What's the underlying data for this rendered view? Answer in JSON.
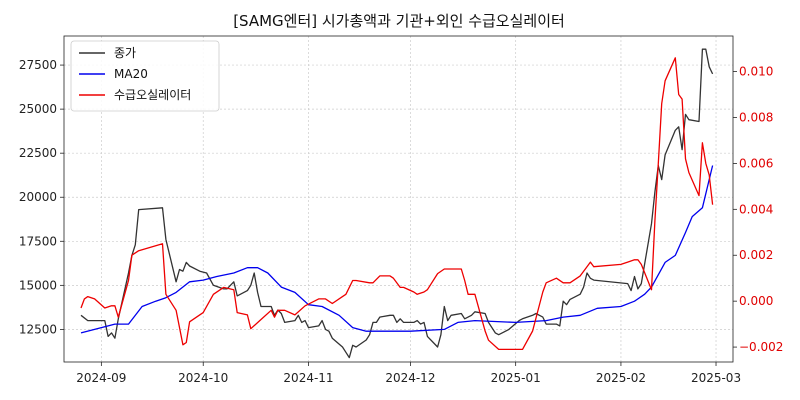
{
  "chart_data": {
    "type": "line",
    "title": "[SAMG엔터] 시가총액과 기관+외인 수급오실레이터",
    "x_ticks": [
      "2024-09",
      "2024-10",
      "2024-11",
      "2024-12",
      "2025-01",
      "2025-02",
      "2025-03"
    ],
    "x_range": [
      "2024-08-21",
      "2025-03-06"
    ],
    "y_left_ticks": [
      12500,
      15000,
      17500,
      20000,
      22500,
      25000,
      27500
    ],
    "y_left_range": [
      10650,
      29150
    ],
    "y_right_ticks": [
      -0.002,
      0.0,
      0.002,
      0.004,
      0.006,
      0.008,
      0.01
    ],
    "y_right_range": [
      -0.00265,
      0.01155
    ],
    "grid": true,
    "legend_position": "top-left",
    "series": [
      {
        "name": "종가",
        "axis": "left",
        "color": "#333333",
        "points": [
          [
            "2024-08-26",
            13300
          ],
          [
            "2024-08-28",
            13000
          ],
          [
            "2024-08-30",
            13000
          ],
          [
            "2024-09-02",
            13000
          ],
          [
            "2024-09-03",
            12100
          ],
          [
            "2024-09-04",
            12300
          ],
          [
            "2024-09-05",
            12000
          ],
          [
            "2024-09-06",
            13100
          ],
          [
            "2024-09-09",
            15700
          ],
          [
            "2024-09-10",
            16700
          ],
          [
            "2024-09-11",
            17300
          ],
          [
            "2024-09-12",
            19300
          ],
          [
            "2024-09-19",
            19400
          ],
          [
            "2024-09-20",
            17600
          ],
          [
            "2024-09-23",
            15200
          ],
          [
            "2024-09-24",
            15900
          ],
          [
            "2024-09-25",
            15800
          ],
          [
            "2024-09-26",
            16300
          ],
          [
            "2024-09-27",
            16100
          ],
          [
            "2024-09-30",
            15800
          ],
          [
            "2024-10-02",
            15700
          ],
          [
            "2024-10-04",
            15000
          ],
          [
            "2024-10-07",
            14800
          ],
          [
            "2024-10-08",
            14800
          ],
          [
            "2024-10-10",
            15200
          ],
          [
            "2024-10-11",
            14400
          ],
          [
            "2024-10-14",
            14700
          ],
          [
            "2024-10-15",
            15000
          ],
          [
            "2024-10-16",
            15700
          ],
          [
            "2024-10-17",
            14600
          ],
          [
            "2024-10-18",
            13800
          ],
          [
            "2024-10-21",
            13800
          ],
          [
            "2024-10-22",
            13300
          ],
          [
            "2024-10-23",
            13600
          ],
          [
            "2024-10-24",
            13400
          ],
          [
            "2024-10-25",
            12900
          ],
          [
            "2024-10-28",
            13000
          ],
          [
            "2024-10-29",
            13300
          ],
          [
            "2024-10-30",
            12900
          ],
          [
            "2024-10-31",
            13000
          ],
          [
            "2024-11-01",
            12600
          ],
          [
            "2024-11-04",
            12700
          ],
          [
            "2024-11-05",
            13000
          ],
          [
            "2024-11-06",
            12500
          ],
          [
            "2024-11-07",
            12400
          ],
          [
            "2024-11-08",
            12000
          ],
          [
            "2024-11-11",
            11500
          ],
          [
            "2024-11-12",
            11200
          ],
          [
            "2024-11-13",
            10900
          ],
          [
            "2024-11-14",
            11600
          ],
          [
            "2024-11-15",
            11500
          ],
          [
            "2024-11-18",
            11900
          ],
          [
            "2024-11-19",
            12200
          ],
          [
            "2024-11-20",
            12900
          ],
          [
            "2024-11-21",
            12900
          ],
          [
            "2024-11-22",
            13200
          ],
          [
            "2024-11-25",
            13300
          ],
          [
            "2024-11-26",
            13300
          ],
          [
            "2024-11-27",
            12900
          ],
          [
            "2024-11-28",
            13100
          ],
          [
            "2024-11-29",
            12900
          ],
          [
            "2024-12-02",
            12900
          ],
          [
            "2024-12-03",
            13000
          ],
          [
            "2024-12-04",
            12800
          ],
          [
            "2024-12-05",
            12900
          ],
          [
            "2024-12-06",
            12100
          ],
          [
            "2024-12-09",
            11500
          ],
          [
            "2024-12-10",
            12200
          ],
          [
            "2024-12-11",
            13800
          ],
          [
            "2024-12-12",
            13000
          ],
          [
            "2024-12-13",
            13300
          ],
          [
            "2024-12-16",
            13400
          ],
          [
            "2024-12-17",
            13100
          ],
          [
            "2024-12-18",
            13200
          ],
          [
            "2024-12-19",
            13300
          ],
          [
            "2024-12-20",
            13500
          ],
          [
            "2024-12-23",
            13400
          ],
          [
            "2024-12-24",
            12900
          ],
          [
            "2024-12-26",
            12300
          ],
          [
            "2024-12-27",
            12200
          ],
          [
            "2024-12-30",
            12500
          ],
          [
            "2025-01-02",
            13000
          ],
          [
            "2025-01-03",
            13100
          ],
          [
            "2025-01-06",
            13300
          ],
          [
            "2025-01-07",
            13400
          ],
          [
            "2025-01-08",
            13300
          ],
          [
            "2025-01-09",
            13200
          ],
          [
            "2025-01-10",
            12800
          ],
          [
            "2025-01-13",
            12800
          ],
          [
            "2025-01-14",
            12700
          ],
          [
            "2025-01-15",
            14100
          ],
          [
            "2025-01-16",
            13900
          ],
          [
            "2025-01-17",
            14200
          ],
          [
            "2025-01-20",
            14500
          ],
          [
            "2025-01-21",
            14900
          ],
          [
            "2025-01-22",
            15700
          ],
          [
            "2025-01-23",
            15400
          ],
          [
            "2025-01-24",
            15300
          ],
          [
            "2025-02-03",
            15100
          ],
          [
            "2025-02-04",
            14700
          ],
          [
            "2025-02-05",
            15500
          ],
          [
            "2025-02-06",
            14800
          ],
          [
            "2025-02-07",
            15100
          ],
          [
            "2025-02-10",
            18500
          ],
          [
            "2025-02-11",
            20300
          ],
          [
            "2025-02-12",
            21800
          ],
          [
            "2025-02-13",
            21000
          ],
          [
            "2025-02-14",
            22400
          ],
          [
            "2025-02-17",
            23800
          ],
          [
            "2025-02-18",
            24000
          ],
          [
            "2025-02-19",
            22700
          ],
          [
            "2025-02-20",
            24700
          ],
          [
            "2025-02-21",
            24400
          ],
          [
            "2025-02-24",
            24300
          ],
          [
            "2025-02-25",
            28400
          ],
          [
            "2025-02-26",
            28400
          ],
          [
            "2025-02-27",
            27400
          ],
          [
            "2025-02-28",
            27000
          ]
        ]
      },
      {
        "name": "MA20",
        "axis": "left",
        "color": "#0000ee",
        "points": [
          [
            "2024-08-26",
            12300
          ],
          [
            "2024-09-01",
            12600
          ],
          [
            "2024-09-05",
            12800
          ],
          [
            "2024-09-09",
            12800
          ],
          [
            "2024-09-13",
            13800
          ],
          [
            "2024-09-17",
            14100
          ],
          [
            "2024-09-20",
            14300
          ],
          [
            "2024-09-23",
            14600
          ],
          [
            "2024-09-27",
            15200
          ],
          [
            "2024-10-01",
            15300
          ],
          [
            "2024-10-05",
            15500
          ],
          [
            "2024-10-10",
            15700
          ],
          [
            "2024-10-14",
            16000
          ],
          [
            "2024-10-17",
            16000
          ],
          [
            "2024-10-20",
            15700
          ],
          [
            "2024-10-24",
            14900
          ],
          [
            "2024-10-28",
            14600
          ],
          [
            "2024-11-01",
            13900
          ],
          [
            "2024-11-05",
            13800
          ],
          [
            "2024-11-10",
            13300
          ],
          [
            "2024-11-14",
            12600
          ],
          [
            "2024-11-18",
            12400
          ],
          [
            "2024-12-01",
            12400
          ],
          [
            "2024-12-11",
            12500
          ],
          [
            "2024-12-15",
            12900
          ],
          [
            "2024-12-20",
            13000
          ],
          [
            "2025-01-01",
            12900
          ],
          [
            "2025-01-10",
            13000
          ],
          [
            "2025-01-15",
            13200
          ],
          [
            "2025-01-20",
            13300
          ],
          [
            "2025-01-25",
            13700
          ],
          [
            "2025-02-01",
            13800
          ],
          [
            "2025-02-05",
            14100
          ],
          [
            "2025-02-08",
            14500
          ],
          [
            "2025-02-10",
            14900
          ],
          [
            "2025-02-14",
            16300
          ],
          [
            "2025-02-17",
            16700
          ],
          [
            "2025-02-20",
            18000
          ],
          [
            "2025-02-22",
            18900
          ],
          [
            "2025-02-25",
            19400
          ],
          [
            "2025-02-28",
            21800
          ]
        ]
      },
      {
        "name": "수급오실레이터",
        "axis": "right",
        "color": "#ee0000",
        "points": [
          [
            "2024-08-26",
            -0.0003
          ],
          [
            "2024-08-27",
            0.0001
          ],
          [
            "2024-08-28",
            0.0002
          ],
          [
            "2024-08-30",
            0.0001
          ],
          [
            "2024-09-02",
            -0.0003
          ],
          [
            "2024-09-04",
            -0.0002
          ],
          [
            "2024-09-05",
            -0.0002
          ],
          [
            "2024-09-06",
            -0.0007
          ],
          [
            "2024-09-09",
            0.0009
          ],
          [
            "2024-09-10",
            0.002
          ],
          [
            "2024-09-12",
            0.0022
          ],
          [
            "2024-09-19",
            0.0025
          ],
          [
            "2024-09-20",
            0.0003
          ],
          [
            "2024-09-23",
            -0.0004
          ],
          [
            "2024-09-25",
            -0.0019
          ],
          [
            "2024-09-26",
            -0.0018
          ],
          [
            "2024-09-27",
            -0.0009
          ],
          [
            "2024-10-01",
            -0.0005
          ],
          [
            "2024-10-04",
            0.0003
          ],
          [
            "2024-10-07",
            0.0006
          ],
          [
            "2024-10-10",
            0.0005
          ],
          [
            "2024-10-11",
            -0.0005
          ],
          [
            "2024-10-14",
            -0.0006
          ],
          [
            "2024-10-15",
            -0.0012
          ],
          [
            "2024-10-18",
            -0.0008
          ],
          [
            "2024-10-21",
            -0.0004
          ],
          [
            "2024-10-22",
            -0.0007
          ],
          [
            "2024-10-23",
            -0.0004
          ],
          [
            "2024-10-25",
            -0.0004
          ],
          [
            "2024-10-28",
            -0.0006
          ],
          [
            "2024-10-31",
            -0.0002
          ],
          [
            "2024-11-04",
            0.0001
          ],
          [
            "2024-11-06",
            0.0001
          ],
          [
            "2024-11-08",
            -0.0001
          ],
          [
            "2024-11-11",
            0.0002
          ],
          [
            "2024-11-12",
            0.0003
          ],
          [
            "2024-11-14",
            0.0009
          ],
          [
            "2024-11-15",
            0.0009
          ],
          [
            "2024-11-19",
            0.0008
          ],
          [
            "2024-11-20",
            0.0008
          ],
          [
            "2024-11-22",
            0.0011
          ],
          [
            "2024-11-25",
            0.0011
          ],
          [
            "2024-11-26",
            0.001
          ],
          [
            "2024-11-28",
            0.0006
          ],
          [
            "2024-11-29",
            0.0006
          ],
          [
            "2024-12-02",
            0.0004
          ],
          [
            "2024-12-03",
            0.0003
          ],
          [
            "2024-12-05",
            0.0004
          ],
          [
            "2024-12-06",
            0.0005
          ],
          [
            "2024-12-09",
            0.0012
          ],
          [
            "2024-12-11",
            0.0014
          ],
          [
            "2024-12-13",
            0.0014
          ],
          [
            "2024-12-16",
            0.0014
          ],
          [
            "2024-12-17",
            0.0009
          ],
          [
            "2024-12-18",
            0.0003
          ],
          [
            "2024-12-20",
            0.0003
          ],
          [
            "2024-12-23",
            -0.0013
          ],
          [
            "2024-12-24",
            -0.0017
          ],
          [
            "2024-12-27",
            -0.0021
          ],
          [
            "2025-01-03",
            -0.0021
          ],
          [
            "2025-01-06",
            -0.0013
          ],
          [
            "2025-01-09",
            0.0004
          ],
          [
            "2025-01-10",
            0.0008
          ],
          [
            "2025-01-13",
            0.001
          ],
          [
            "2025-01-15",
            0.0008
          ],
          [
            "2025-01-17",
            0.0008
          ],
          [
            "2025-01-20",
            0.0011
          ],
          [
            "2025-01-22",
            0.0015
          ],
          [
            "2025-01-23",
            0.0017
          ],
          [
            "2025-01-24",
            0.0015
          ],
          [
            "2025-02-01",
            0.0016
          ],
          [
            "2025-02-03",
            0.0017
          ],
          [
            "2025-02-05",
            0.0018
          ],
          [
            "2025-02-06",
            0.0018
          ],
          [
            "2025-02-07",
            0.0016
          ],
          [
            "2025-02-10",
            0.0005
          ],
          [
            "2025-02-11",
            0.0035
          ],
          [
            "2025-02-12",
            0.006
          ],
          [
            "2025-02-13",
            0.0086
          ],
          [
            "2025-02-14",
            0.0096
          ],
          [
            "2025-02-17",
            0.0106
          ],
          [
            "2025-02-18",
            0.009
          ],
          [
            "2025-02-19",
            0.0088
          ],
          [
            "2025-02-20",
            0.0062
          ],
          [
            "2025-02-21",
            0.0056
          ],
          [
            "2025-02-24",
            0.0046
          ],
          [
            "2025-02-25",
            0.0069
          ],
          [
            "2025-02-26",
            0.006
          ],
          [
            "2025-02-27",
            0.0055
          ],
          [
            "2025-02-28",
            0.0042
          ]
        ]
      }
    ]
  }
}
